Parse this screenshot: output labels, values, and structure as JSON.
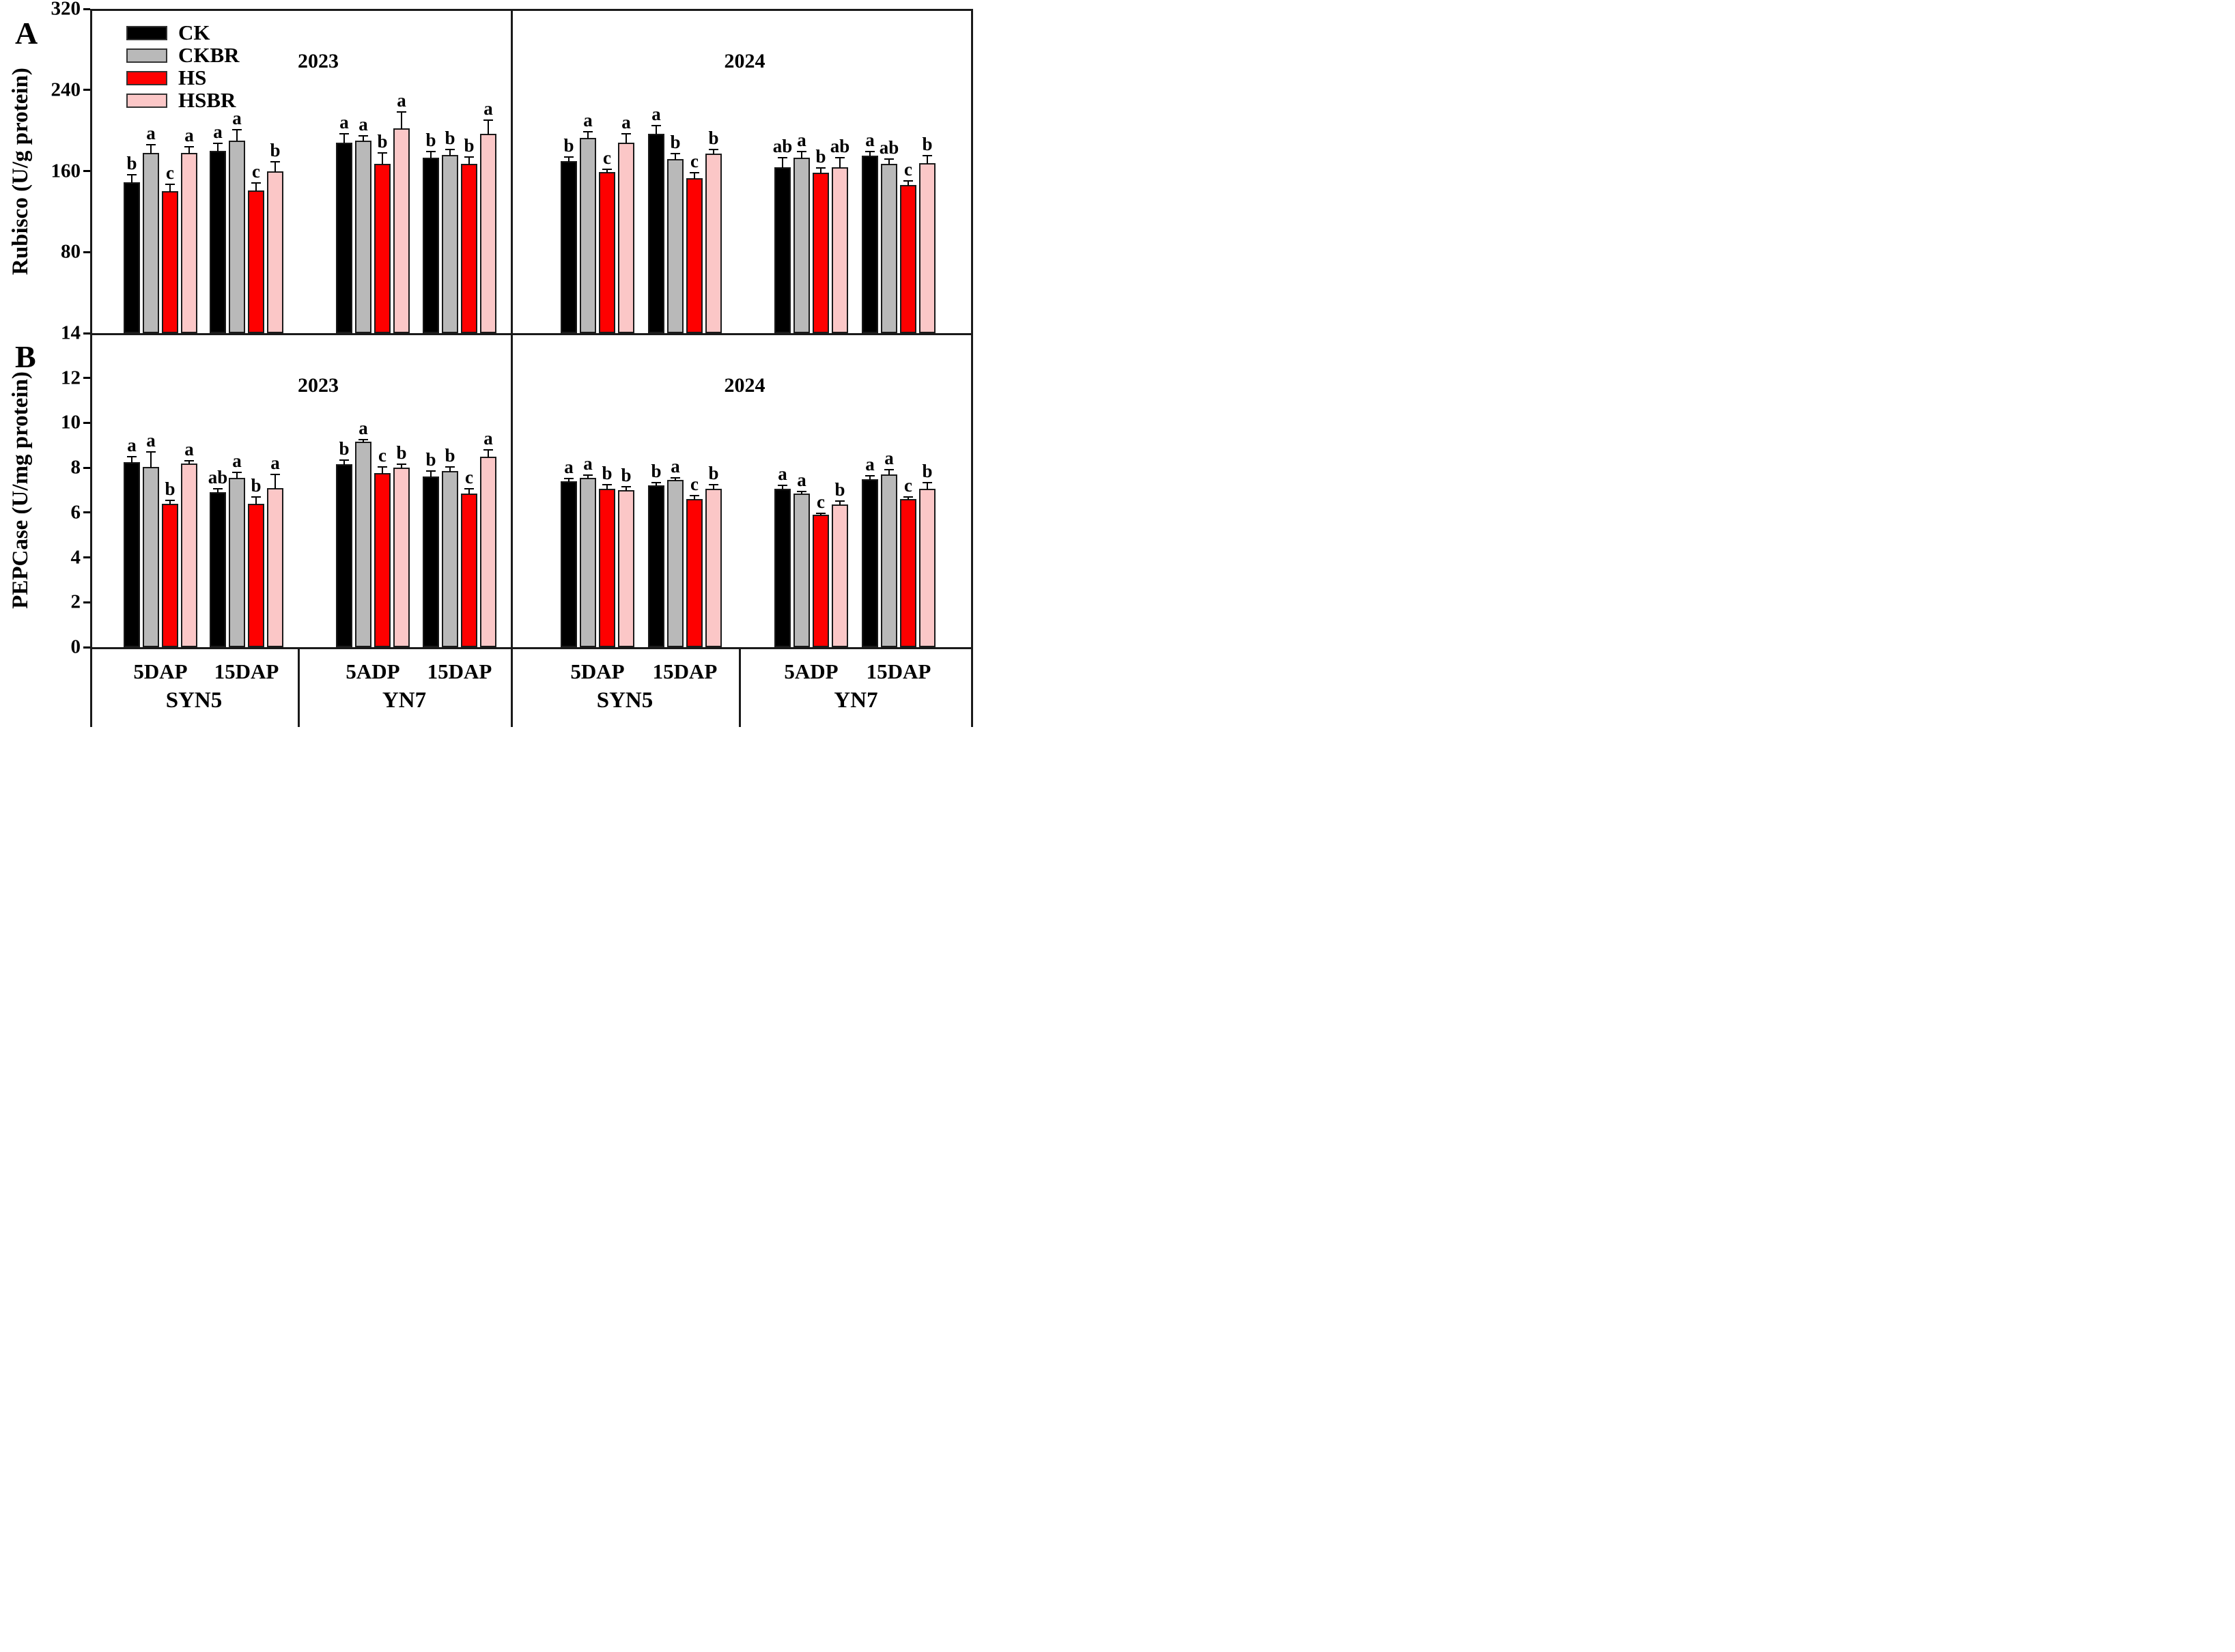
{
  "chart_data": {
    "type": "bar",
    "title": "",
    "legend_position": "top-left-inside",
    "treatments": [
      "CK",
      "CKBR",
      "HS",
      "HSBR"
    ],
    "treatment_colors": {
      "CK": "#000000",
      "CKBR": "#b9b9b9",
      "HS": "#fe0000",
      "HSBR": "#fbc7c7"
    },
    "x_time_labels": [
      "5DAP",
      "15DAP",
      "5ADP",
      "15DAP",
      "5DAP",
      "15DAP",
      "5ADP",
      "15DAP"
    ],
    "x_cultivar_labels": [
      "SYN5",
      "YN7",
      "SYN5",
      "YN7"
    ],
    "panels": [
      {
        "label": "A",
        "ylabel": "Rubisco (U/g protein)",
        "ylim": [
          0,
          320
        ],
        "yticks": [
          80,
          160,
          240,
          320
        ],
        "grid": false,
        "years": [
          {
            "label": "2023",
            "cultivars": [
              {
                "name": "SYN5",
                "groups": [
                  {
                    "label": "5DAP",
                    "values": [
                      149,
                      178,
                      140,
                      178
                    ],
                    "errors": [
                      7,
                      8,
                      7,
                      6
                    ],
                    "letters": [
                      "b",
                      "a",
                      "c",
                      "a"
                    ]
                  },
                  {
                    "label": "15DAP",
                    "values": [
                      180,
                      190,
                      141,
                      160
                    ],
                    "errors": [
                      7,
                      11,
                      7,
                      9
                    ],
                    "letters": [
                      "a",
                      "a",
                      "c",
                      "b"
                    ]
                  }
                ]
              },
              {
                "name": "YN7",
                "groups": [
                  {
                    "label": "5ADP",
                    "values": [
                      188,
                      190,
                      167,
                      202
                    ],
                    "errors": [
                      9,
                      5,
                      11,
                      16
                    ],
                    "letters": [
                      "a",
                      "a",
                      "b",
                      "a"
                    ]
                  },
                  {
                    "label": "15DAP",
                    "values": [
                      173,
                      176,
                      167,
                      197
                    ],
                    "errors": [
                      6,
                      5,
                      7,
                      13
                    ],
                    "letters": [
                      "b",
                      "b",
                      "b",
                      "a"
                    ]
                  }
                ]
              }
            ]
          },
          {
            "label": "2024",
            "cultivars": [
              {
                "name": "SYN5",
                "groups": [
                  {
                    "label": "5DAP",
                    "values": [
                      170,
                      193,
                      159,
                      188
                    ],
                    "errors": [
                      4,
                      6,
                      3,
                      9
                    ],
                    "letters": [
                      "b",
                      "a",
                      "c",
                      "a"
                    ]
                  },
                  {
                    "label": "15DAP",
                    "values": [
                      197,
                      172,
                      153,
                      177
                    ],
                    "errors": [
                      8,
                      5,
                      5,
                      4
                    ],
                    "letters": [
                      "a",
                      "b",
                      "c",
                      "b"
                    ]
                  }
                ]
              },
              {
                "name": "YN7",
                "groups": [
                  {
                    "label": "5ADP",
                    "values": [
                      164,
                      173,
                      158,
                      164
                    ],
                    "errors": [
                      9,
                      6,
                      5,
                      9
                    ],
                    "letters": [
                      "ab",
                      "a",
                      "b",
                      "ab"
                    ]
                  },
                  {
                    "label": "15DAP",
                    "values": [
                      175,
                      167,
                      146,
                      168
                    ],
                    "errors": [
                      4,
                      5,
                      4,
                      7
                    ],
                    "letters": [
                      "a",
                      "ab",
                      "c",
                      "b"
                    ]
                  }
                ]
              }
            ]
          }
        ]
      },
      {
        "label": "B",
        "ylabel": "PEPCase (U/mg protein)",
        "ylim": [
          0,
          14
        ],
        "yticks": [
          0,
          2,
          4,
          6,
          8,
          10,
          12,
          14
        ],
        "grid": false,
        "years": [
          {
            "label": "2023",
            "cultivars": [
              {
                "name": "SYN5",
                "groups": [
                  {
                    "label": "5DAP",
                    "values": [
                      8.25,
                      8.05,
                      6.4,
                      8.2
                    ],
                    "errors": [
                      0.25,
                      0.65,
                      0.15,
                      0.12
                    ],
                    "letters": [
                      "a",
                      "a",
                      "b",
                      "a"
                    ]
                  },
                  {
                    "label": "15DAP",
                    "values": [
                      6.9,
                      7.55,
                      6.4,
                      7.1
                    ],
                    "errors": [
                      0.15,
                      0.25,
                      0.3,
                      0.6
                    ],
                    "letters": [
                      "ab",
                      "a",
                      "b",
                      "a"
                    ]
                  }
                ]
              },
              {
                "name": "YN7",
                "groups": [
                  {
                    "label": "5ADP",
                    "values": [
                      8.15,
                      9.15,
                      7.75,
                      8.0
                    ],
                    "errors": [
                      0.2,
                      0.1,
                      0.3,
                      0.15
                    ],
                    "letters": [
                      "b",
                      "a",
                      "c",
                      "b"
                    ]
                  },
                  {
                    "label": "15DAP",
                    "values": [
                      7.6,
                      7.85,
                      6.85,
                      8.5
                    ],
                    "errors": [
                      0.25,
                      0.2,
                      0.2,
                      0.3
                    ],
                    "letters": [
                      "b",
                      "b",
                      "c",
                      "a"
                    ]
                  }
                ]
              }
            ]
          },
          {
            "label": "2024",
            "cultivars": [
              {
                "name": "SYN5",
                "groups": [
                  {
                    "label": "5DAP",
                    "values": [
                      7.4,
                      7.55,
                      7.05,
                      7.0
                    ],
                    "errors": [
                      0.12,
                      0.12,
                      0.2,
                      0.15
                    ],
                    "letters": [
                      "a",
                      "a",
                      "b",
                      "b"
                    ]
                  },
                  {
                    "label": "15DAP",
                    "values": [
                      7.2,
                      7.45,
                      6.6,
                      7.05
                    ],
                    "errors": [
                      0.15,
                      0.1,
                      0.15,
                      0.2
                    ],
                    "letters": [
                      "b",
                      "a",
                      "c",
                      "b"
                    ]
                  }
                ]
              },
              {
                "name": "YN7",
                "groups": [
                  {
                    "label": "5ADP",
                    "values": [
                      7.05,
                      6.85,
                      5.9,
                      6.35
                    ],
                    "errors": [
                      0.15,
                      0.1,
                      0.07,
                      0.15
                    ],
                    "letters": [
                      "a",
                      "a",
                      "c",
                      "b"
                    ]
                  },
                  {
                    "label": "15DAP",
                    "values": [
                      7.5,
                      7.7,
                      6.6,
                      7.05
                    ],
                    "errors": [
                      0.15,
                      0.2,
                      0.1,
                      0.3
                    ],
                    "letters": [
                      "a",
                      "a",
                      "c",
                      "b"
                    ]
                  }
                ]
              }
            ]
          }
        ]
      }
    ],
    "legend": [
      {
        "label": "CK",
        "color": "#000000"
      },
      {
        "label": "CKBR",
        "color": "#b9b9b9"
      },
      {
        "label": "HS",
        "color": "#fe0000"
      },
      {
        "label": "HSBR",
        "color": "#fbc7c7"
      }
    ]
  }
}
